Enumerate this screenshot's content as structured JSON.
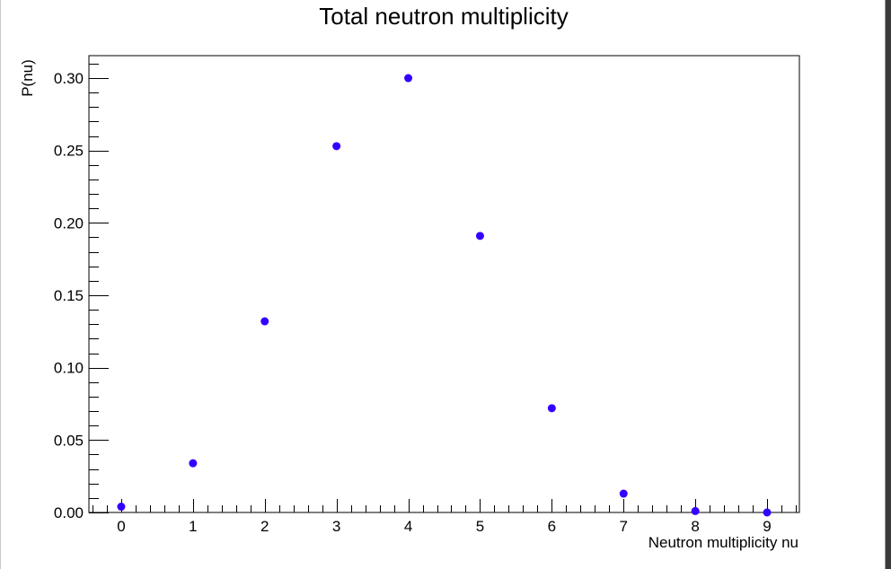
{
  "chart_data": {
    "type": "scatter",
    "title": "Total neutron multiplicity",
    "xlabel": "Neutron multiplicity nu",
    "ylabel": "P(nu)",
    "xlim": [
      -0.45,
      9.45
    ],
    "ylim": [
      0.0,
      0.3155
    ],
    "x_ticks": [
      0,
      1,
      2,
      3,
      4,
      5,
      6,
      7,
      8,
      9
    ],
    "x_tick_labels": [
      "0",
      "1",
      "2",
      "3",
      "4",
      "5",
      "6",
      "7",
      "8",
      "9"
    ],
    "y_ticks": [
      0.0,
      0.05,
      0.1,
      0.15,
      0.2,
      0.25,
      0.3
    ],
    "y_tick_labels": [
      "0.00",
      "0.05",
      "0.10",
      "0.15",
      "0.20",
      "0.25",
      "0.30"
    ],
    "grid": false,
    "legend": false,
    "marker_color": "#3300ff",
    "series": [
      {
        "x": [
          0,
          1,
          2,
          3,
          4,
          5,
          6,
          7,
          8,
          9
        ],
        "y": [
          0.004,
          0.034,
          0.132,
          0.253,
          0.3,
          0.191,
          0.072,
          0.013,
          0.001,
          0.0
        ]
      }
    ]
  }
}
